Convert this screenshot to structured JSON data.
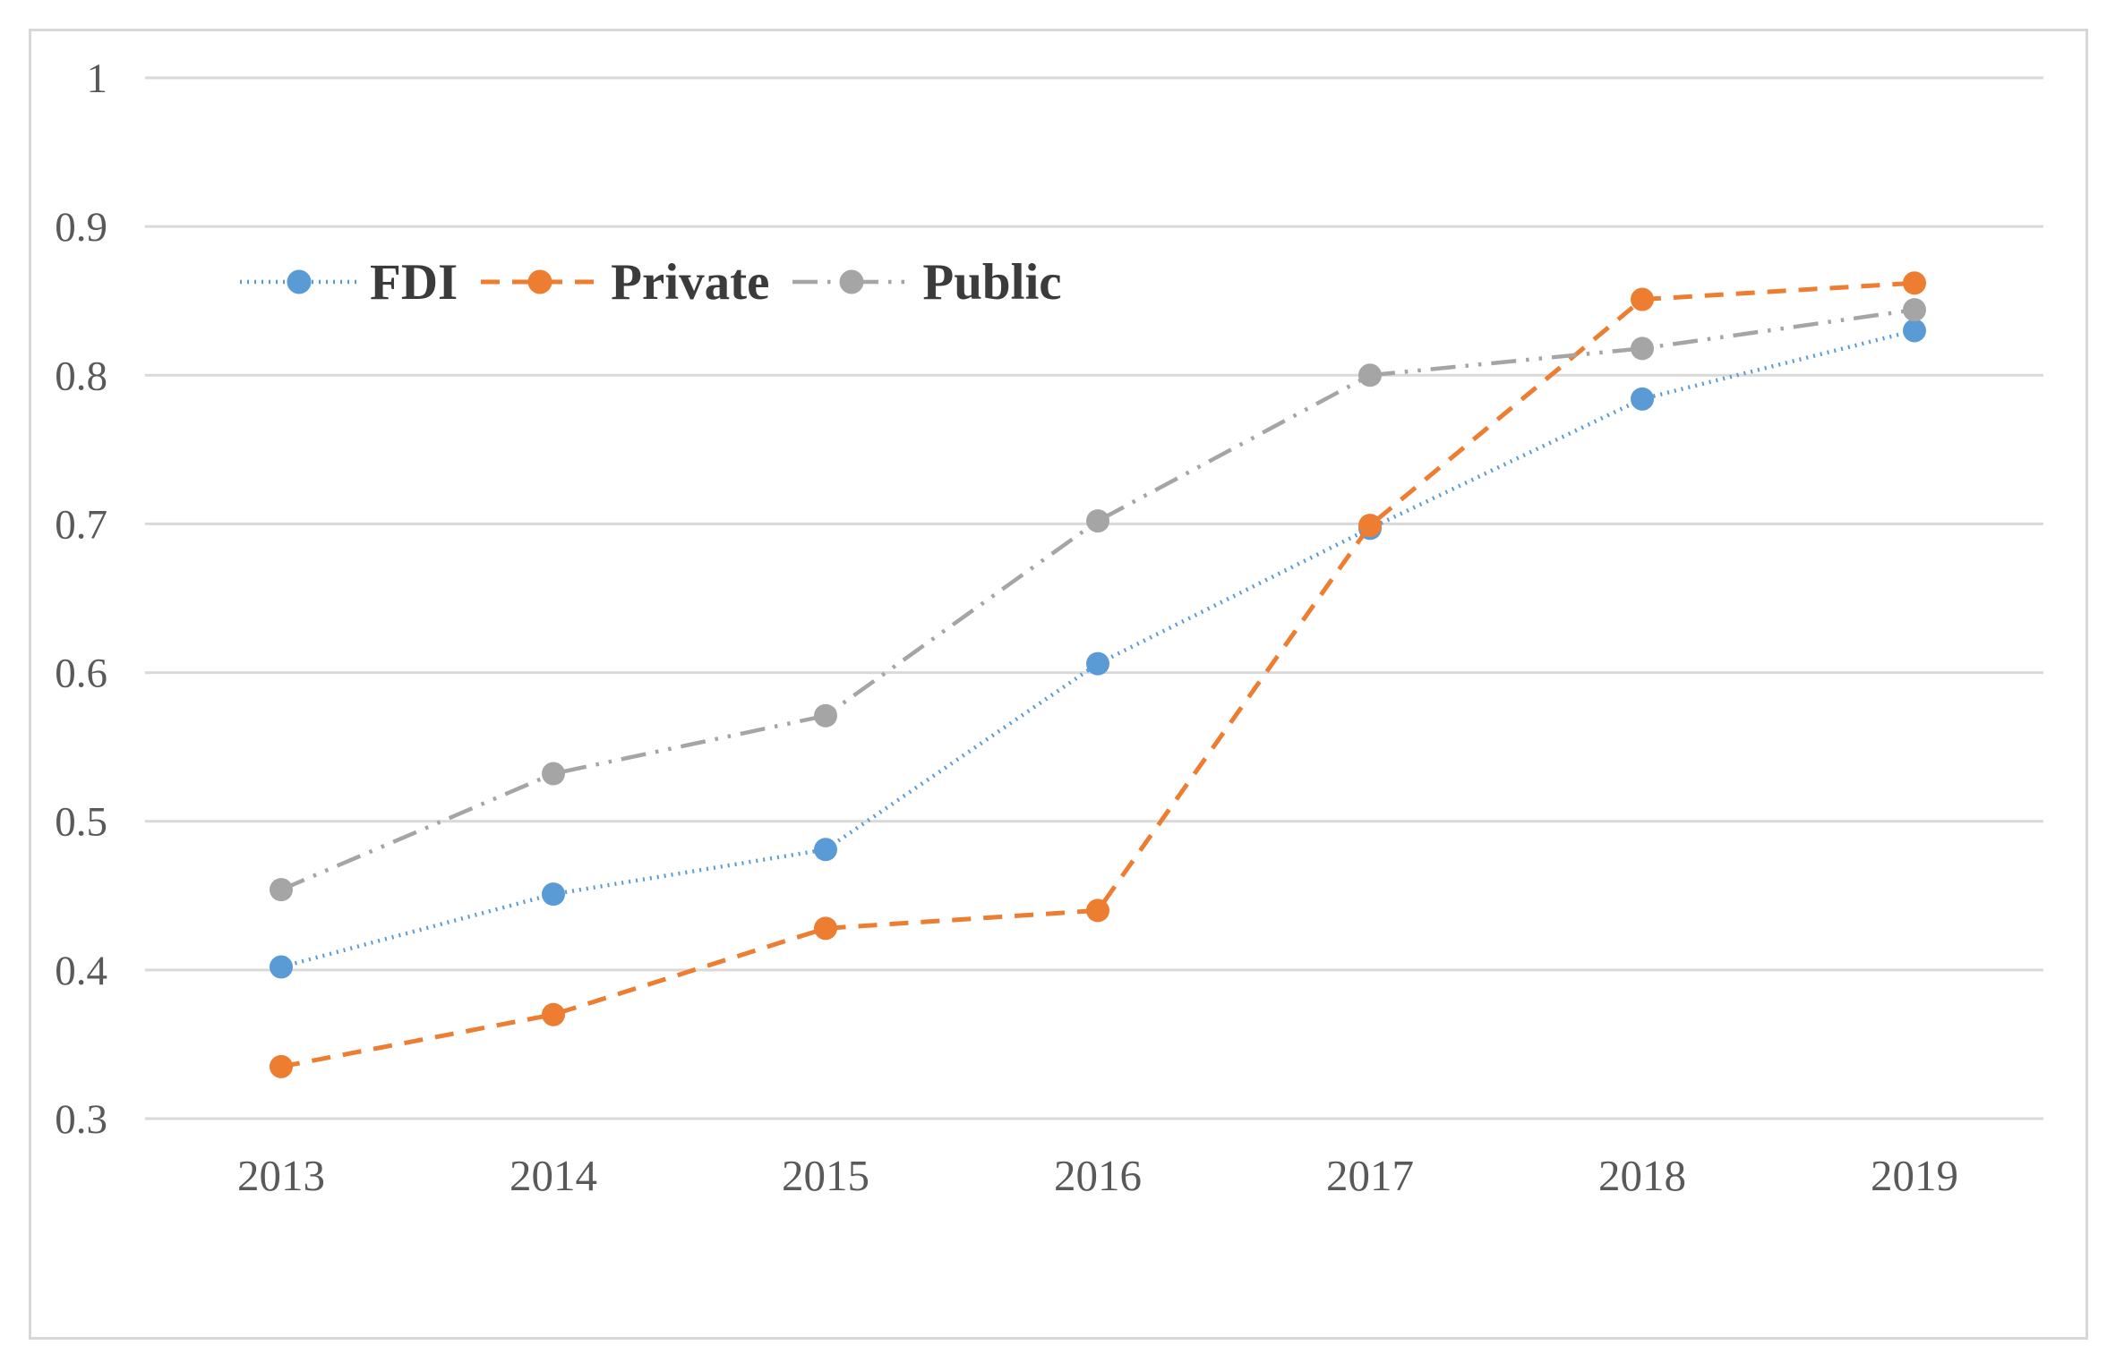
{
  "chart_data": {
    "type": "line",
    "title": "",
    "xlabel": "",
    "ylabel": "",
    "categories": [
      "2013",
      "2014",
      "2015",
      "2016",
      "2017",
      "2018",
      "2019"
    ],
    "series": [
      {
        "name": "FDI",
        "color": "#5B9BD5",
        "dash": "dot",
        "marker": "circle",
        "values": [
          0.402,
          0.451,
          0.481,
          0.606,
          0.697,
          0.784,
          0.83
        ]
      },
      {
        "name": "Private",
        "color": "#ED7D31",
        "dash": "dash",
        "marker": "circle",
        "values": [
          0.335,
          0.37,
          0.428,
          0.44,
          0.699,
          0.851,
          0.862
        ]
      },
      {
        "name": "Public",
        "color": "#A5A5A5",
        "dash": "long-dash-dot-dot",
        "marker": "circle",
        "values": [
          0.454,
          0.532,
          0.571,
          0.702,
          0.8,
          0.818,
          0.844
        ]
      }
    ],
    "ylim": [
      0.3,
      1.0
    ],
    "yticks": [
      1,
      0.9,
      0.8,
      0.7,
      0.6,
      0.5,
      0.4,
      0.3
    ],
    "ytick_labels": [
      "1",
      "0.9",
      "0.8",
      "0.7",
      "0.6",
      "0.5",
      "0.4",
      "0.3"
    ],
    "xtick_labels": [
      "2013",
      "2014",
      "2015",
      "2016",
      "2017",
      "2018",
      "2019"
    ],
    "grid": true,
    "legend_position": "top-left-inside",
    "legend_entries": [
      "FDI",
      "Private",
      "Public"
    ],
    "grid_color": "#D9D9D9",
    "frame_border_color": "#D7D7D7",
    "tick_label_color": "#595959",
    "legend_text_color": "#3B3B3B",
    "background_color": "#FFFFFF"
  }
}
